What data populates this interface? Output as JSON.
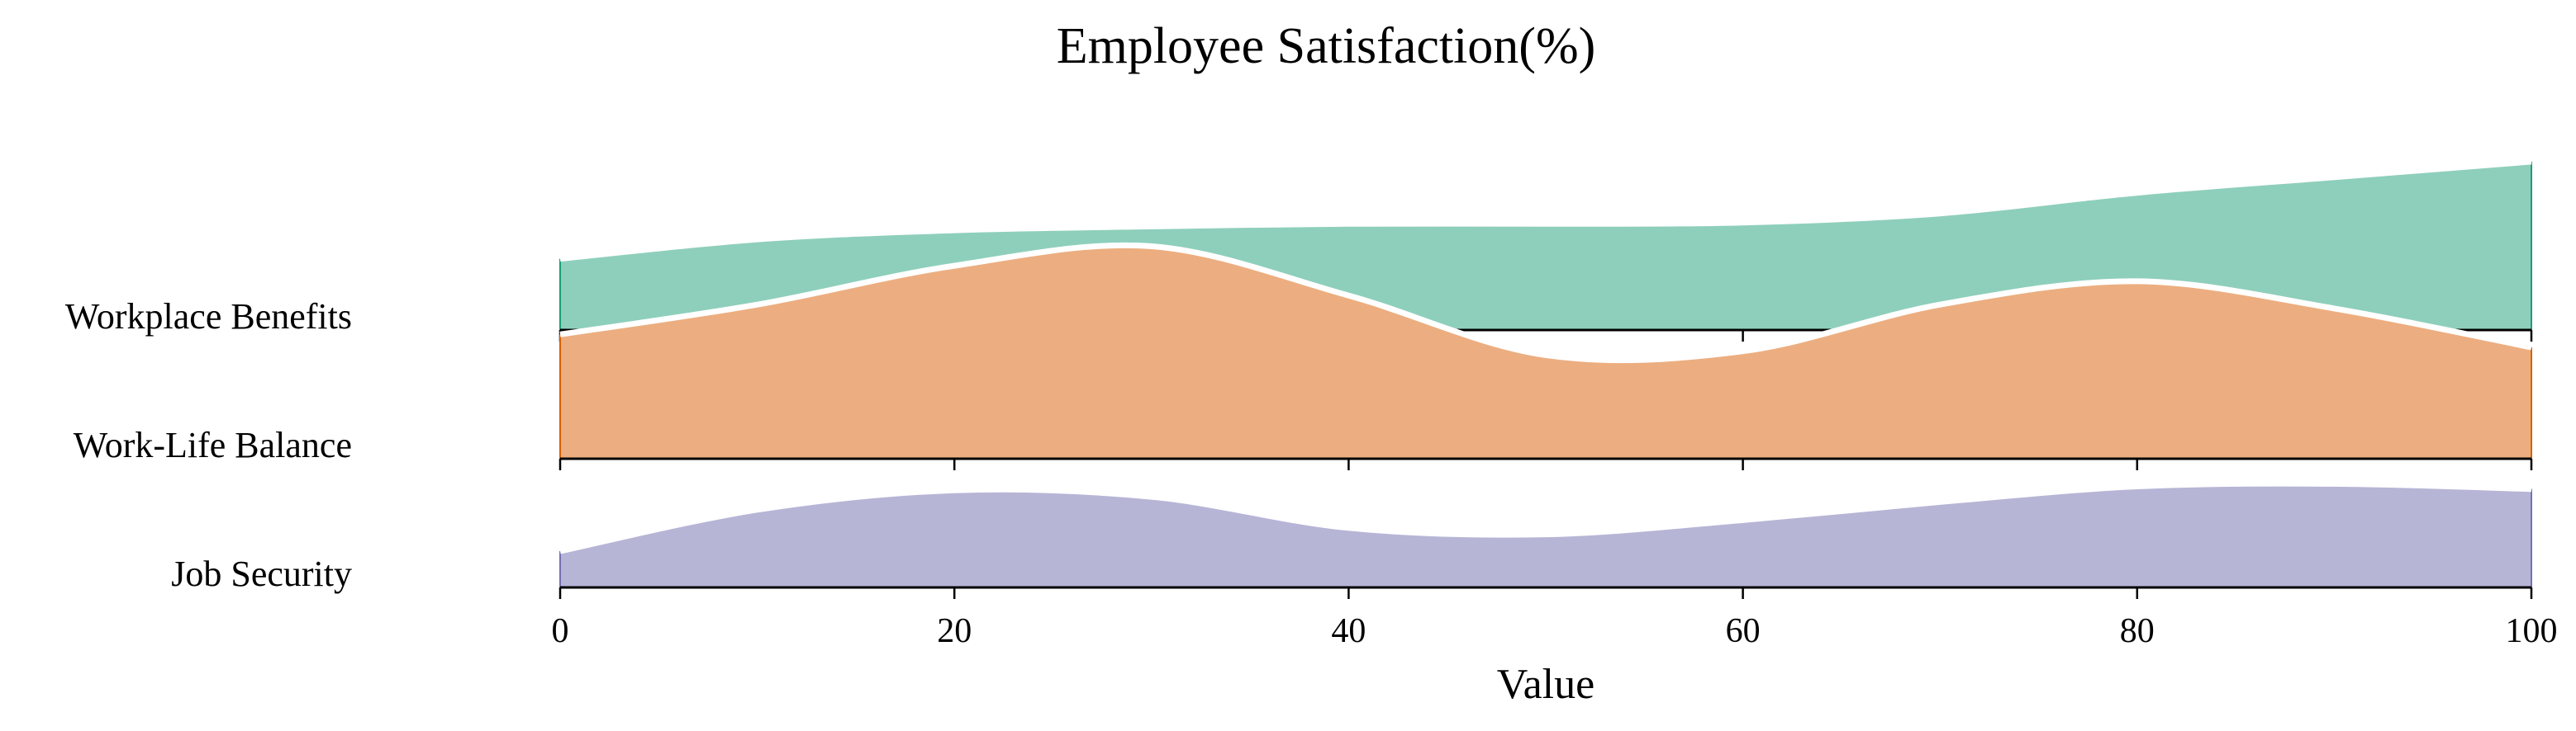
{
  "chart_data": {
    "type": "ridgeline",
    "title": "Employee Satisfaction(%)",
    "xlabel": "Value",
    "ylabel": "",
    "xlim": [
      0,
      100
    ],
    "xticks": [
      0,
      20,
      40,
      60,
      80,
      100
    ],
    "categories": [
      "Job Security",
      "Work-Life Balance",
      "Workplace Benefits"
    ],
    "series": [
      {
        "name": "Job Security",
        "color": "#b7b5d6",
        "edge_color": "#7570b3",
        "x": [
          0,
          10,
          20,
          30,
          40,
          50,
          60,
          70,
          80,
          90,
          100
        ],
        "density": [
          0.28,
          0.6,
          0.75,
          0.7,
          0.46,
          0.41,
          0.52,
          0.66,
          0.78,
          0.8,
          0.76
        ]
      },
      {
        "name": "Work-Life Balance",
        "color": "#ecae80",
        "edge_color": "#d95f02",
        "x": [
          0,
          10,
          20,
          30,
          40,
          50,
          60,
          70,
          80,
          90,
          100
        ],
        "density": [
          0.96,
          1.19,
          1.49,
          1.64,
          1.26,
          0.8,
          0.83,
          1.19,
          1.37,
          1.16,
          0.86
        ]
      },
      {
        "name": "Workplace Benefits",
        "color": "#8ecfbb",
        "edge_color": "#1b9e77",
        "x": [
          0,
          10,
          20,
          30,
          40,
          50,
          60,
          70,
          80,
          90,
          100
        ],
        "density": [
          0.55,
          0.7,
          0.77,
          0.8,
          0.82,
          0.82,
          0.83,
          0.9,
          1.06,
          1.18,
          1.3
        ]
      }
    ],
    "grid": false,
    "legend": "none"
  }
}
